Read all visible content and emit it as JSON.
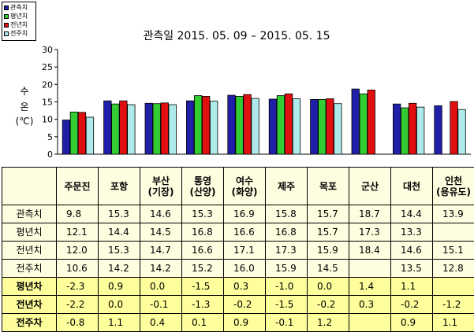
{
  "chart_data": {
    "type": "bar",
    "title": "관측일 2015. 05. 09 – 2015. 05. 15",
    "ylabel": [
      "수",
      "온",
      "(℃)"
    ],
    "ylim": [
      0,
      30
    ],
    "yticks": [
      0,
      5,
      10,
      15,
      20,
      25,
      30
    ],
    "categories": [
      "주문진",
      "포항",
      "부산(기장)",
      "통영(산양)",
      "여수(화양)",
      "제주",
      "목포",
      "군산",
      "대천",
      "인천(용유도)"
    ],
    "series": [
      {
        "name": "관측치",
        "color": "#1f1fa8",
        "values": [
          9.8,
          15.3,
          14.6,
          15.3,
          16.9,
          15.8,
          15.7,
          18.7,
          14.4,
          13.9
        ]
      },
      {
        "name": "평년치",
        "color": "#33cc33",
        "values": [
          12.1,
          14.4,
          14.5,
          16.8,
          16.6,
          16.8,
          15.7,
          17.3,
          13.3,
          null
        ]
      },
      {
        "name": "전년치",
        "color": "#e01010",
        "values": [
          12.0,
          15.3,
          14.7,
          16.6,
          17.1,
          17.3,
          15.9,
          18.4,
          14.6,
          15.1
        ]
      },
      {
        "name": "전주치",
        "color": "#aeeaea",
        "values": [
          10.6,
          14.2,
          14.2,
          15.2,
          16.0,
          15.9,
          14.5,
          null,
          13.5,
          12.8
        ]
      }
    ],
    "legend_position": "top-left",
    "grid": false
  },
  "table": {
    "headers": [
      {
        "line1": "주문진",
        "line2": ""
      },
      {
        "line1": "포항",
        "line2": ""
      },
      {
        "line1": "부산",
        "line2": "(기장)"
      },
      {
        "line1": "통영",
        "line2": "(산양)"
      },
      {
        "line1": "여수",
        "line2": "(화양)"
      },
      {
        "line1": "제주",
        "line2": ""
      },
      {
        "line1": "목포",
        "line2": ""
      },
      {
        "line1": "군산",
        "line2": ""
      },
      {
        "line1": "대천",
        "line2": ""
      },
      {
        "line1": "인천",
        "line2": "(용유도)"
      }
    ],
    "rows": [
      {
        "label": "관측치",
        "diff": false,
        "cells": [
          "9.8",
          "15.3",
          "14.6",
          "15.3",
          "16.9",
          "15.8",
          "15.7",
          "18.7",
          "14.4",
          "13.9"
        ]
      },
      {
        "label": "평년치",
        "diff": false,
        "cells": [
          "12.1",
          "14.4",
          "14.5",
          "16.8",
          "16.6",
          "16.8",
          "15.7",
          "17.3",
          "13.3",
          ""
        ]
      },
      {
        "label": "전년치",
        "diff": false,
        "cells": [
          "12.0",
          "15.3",
          "14.7",
          "16.6",
          "17.1",
          "17.3",
          "15.9",
          "18.4",
          "14.6",
          "15.1"
        ]
      },
      {
        "label": "전주치",
        "diff": false,
        "cells": [
          "10.6",
          "14.2",
          "14.2",
          "15.2",
          "16.0",
          "15.9",
          "14.5",
          "",
          "13.5",
          "12.8"
        ]
      },
      {
        "label": "평년차",
        "diff": true,
        "cells": [
          "-2.3",
          "0.9",
          "0.0",
          "-1.5",
          "0.3",
          "-1.0",
          "0.0",
          "1.4",
          "1.1",
          ""
        ]
      },
      {
        "label": "전년차",
        "diff": true,
        "cells": [
          "-2.2",
          "0.0",
          "-0.1",
          "-1.3",
          "-0.2",
          "-1.5",
          "-0.2",
          "0.3",
          "-0.2",
          "-1.2"
        ]
      },
      {
        "label": "전주차",
        "diff": true,
        "cells": [
          "-0.8",
          "1.1",
          "0.4",
          "0.1",
          "0.9",
          "-0.1",
          "1.2",
          "",
          "0.9",
          "1.1"
        ]
      }
    ]
  }
}
